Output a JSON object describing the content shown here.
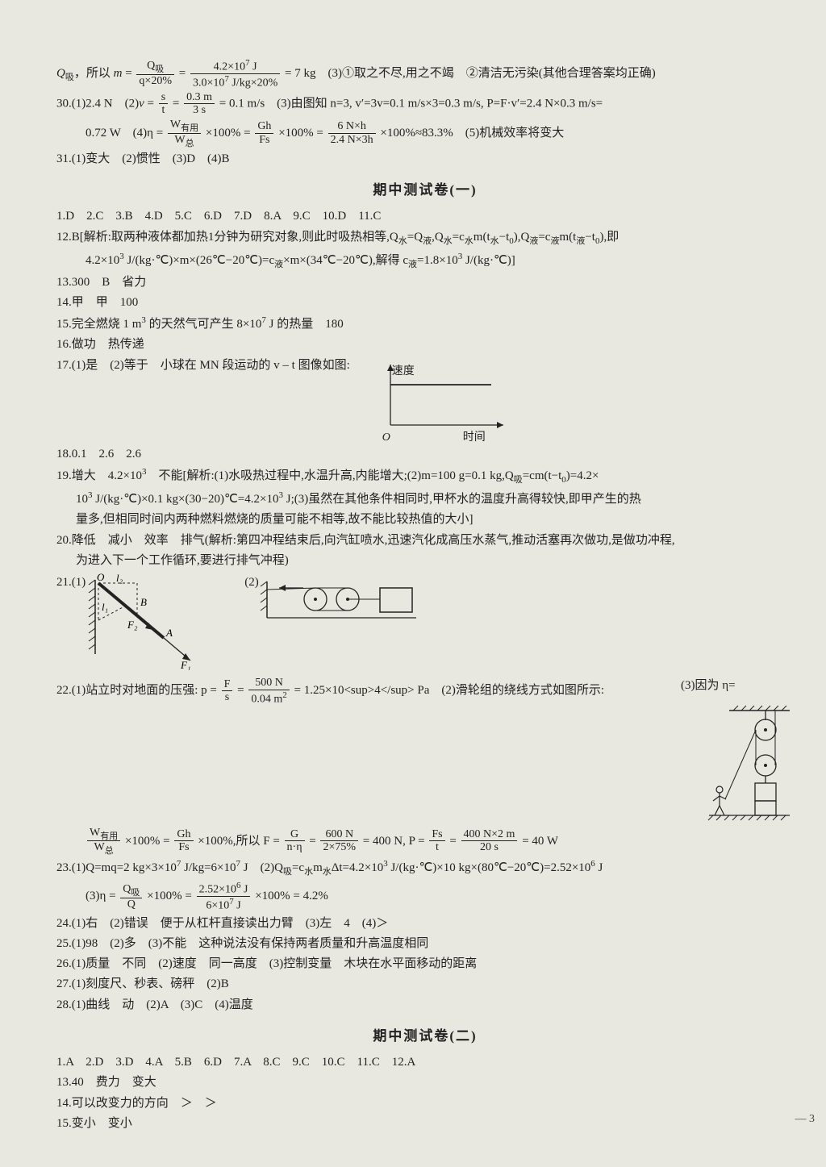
{
  "pre": {
    "l1a": "Q",
    "l1a_sub": "吸",
    "l1b": "，所以 ",
    "l1_m": "m",
    "l1_eq": " = ",
    "f1_num": "Q<sub>吸</sub>",
    "f1_den": "q×20%",
    "f2_num": "4.2×10<sup>7</sup> J",
    "f2_den": "3.0×10<sup>7</sup> J/kg×20%",
    "l1c": " = 7 kg　(3)①取之不尽,用之不竭　②清洁无污染(其他合理答案均正确)",
    "q30a": "30.(1)2.4 N　(2)",
    "q30b": "v",
    "f3_num": "s",
    "f3_den": "t",
    "f4_num": "0.3 m",
    "f4_den": "3 s",
    "q30c": " = 0.1 m/s　(3)由图知 n=3, v′=3v=0.1 m/s×3=0.3 m/s, P=F·v′=2.4 N×0.3 m/s=",
    "q30d": "0.72 W　(4)η = ",
    "f5_num": "W<sub>有用</sub>",
    "f5_den": "W<sub>总</sub>",
    "q30e": "×100% = ",
    "f6_num": "Gh",
    "f6_den": "Fs",
    "f7_num": "6 N×h",
    "f7_den": "2.4 N×3h",
    "q30f": "×100%≈83.3%　(5)机械效率将变大",
    "q31": "31.(1)变大　(2)惯性　(3)D　(4)B"
  },
  "sec1_title": "期中测试卷(一)",
  "s1": {
    "mc": "1.D　2.C　3.B　4.D　5.C　6.D　7.D　8.A　9.C　10.D　11.C",
    "q12a": "12.B[解析:取两种液体都加热1分钟为研究对象,则此时吸热相等,Q<sub>水</sub>=Q<sub>液</sub>,Q<sub>水</sub>=c<sub>水</sub>m(t<sub>水</sub>−t<sub>0</sub>),Q<sub>液</sub>=c<sub>液</sub>m(t<sub>液</sub>−t<sub>0</sub>),即",
    "q12b": "4.2×10<sup>3</sup> J/(kg·℃)×m×(26℃−20℃)=c<sub>液</sub>×m×(34℃−20℃),解得 c<sub>液</sub>=1.8×10<sup>3</sup> J/(kg·℃)]",
    "q13": "13.300　B　省力",
    "q14": "14.甲　甲　100",
    "q15": "15.完全燃烧 1 m<sup>3</sup> 的天然气可产生 8×10<sup>7</sup> J 的热量　180",
    "q16": "16.做功　热传递",
    "q17": "17.(1)是　(2)等于　小球在 MN 段运动的 v – t 图像如图:",
    "vt_y": "速度",
    "vt_x": "时间",
    "vt_o": "O",
    "q18": "18.0.1　2.6　2.6",
    "q19a": "19.增大　4.2×10<sup>3</sup>　不能[解析:(1)水吸热过程中,水温升高,内能增大;(2)m=100 g=0.1 kg,Q<sub>吸</sub>=cm(t−t<sub>0</sub>)=4.2×",
    "q19b": "10<sup>3</sup> J/(kg·℃)×0.1 kg×(30−20)℃=4.2×10<sup>3</sup> J;(3)虽然在其他条件相同时,甲杯水的温度升高得较快,即甲产生的热",
    "q19c": "量多,但相同时间内两种燃料燃烧的质量可能不相等,故不能比较热值的大小]",
    "q20a": "20.降低　减小　效率　排气(解析:第四冲程结束后,向汽缸喷水,迅速汽化成高压水蒸气,推动活塞再次做功,是做功冲程,",
    "q20b": "为进入下一个工作循环,要进行排气冲程)",
    "q21label": "21.(1)",
    "q21label2": "(2)",
    "fig21_O": "O",
    "fig21_l2": "l₂",
    "fig21_l1": "l₁",
    "fig21_B": "B",
    "fig21_A": "A",
    "fig21_F2": "F₂",
    "fig21_F1": "F₁",
    "q22a": "22.(1)站立时对地面的压强: p = ",
    "f22a_num": "F",
    "f22a_den": "s",
    "f22b_num": "500 N",
    "f22b_den": "0.04 m<sup>2</sup>",
    "q22b": " = 1.25×10<sup>4</sup> Pa　(2)滑轮组的绕线方式如图所示:",
    "q22c": "(3)因为 η=",
    "q22d1": "×100% = ",
    "f22c_num": "W<sub>有用</sub>",
    "f22c_den": "W<sub>总</sub>",
    "f22d_num": "Gh",
    "f22d_den": "Fs",
    "q22d2": "×100%,所以 F = ",
    "f22e_num": "G",
    "f22e_den": "n·η",
    "f22f_num": "600 N",
    "f22f_den": "2×75%",
    "q22d3": " = 400 N, P = ",
    "f22g_num": "Fs",
    "f22g_den": "t",
    "f22h_num": "400 N×2 m",
    "f22h_den": "20 s",
    "q22d4": " = 40 W",
    "q23a": "23.(1)Q=mq=2 kg×3×10<sup>7</sup> J/kg=6×10<sup>7</sup> J　(2)Q<sub>吸</sub>=c<sub>水</sub>m<sub>水</sub>Δt=4.2×10<sup>3</sup> J/(kg·℃)×10 kg×(80℃−20℃)=2.52×10<sup>6</sup> J",
    "q23b1": "(3)η = ",
    "f23a_num": "Q<sub>吸</sub>",
    "f23a_den": "Q",
    "f23b_num": "2.52×10<sup>6</sup> J",
    "f23b_den": "6×10<sup>7</sup> J",
    "q23b2": "×100% = 4.2%",
    "q24": "24.(1)右　(2)错误　便于从杠杆直接读出力臂　(3)左　4　(4)＞",
    "q25": "25.(1)98　(2)多　(3)不能　这种说法没有保持两者质量和升高温度相同",
    "q26": "26.(1)质量　不同　(2)速度　同一高度　(3)控制变量　木块在水平面移动的距离",
    "q27": "27.(1)刻度尺、秒表、磅秤　(2)B",
    "q28": "28.(1)曲线　动　(2)A　(3)C　(4)温度"
  },
  "sec2_title": "期中测试卷(二)",
  "s2": {
    "mc": "1.A　2.D　3.D　4.A　5.B　6.D　7.A　8.C　9.C　10.C　11.C　12.A",
    "q13": "13.40　费力　变大",
    "q14": "14.可以改变力的方向　＞　＞",
    "q15": "15.变小　变小"
  },
  "pagefoot": "— 3",
  "colors": {
    "bg": "#e8e8e0",
    "text": "#222222",
    "rule": "#222222"
  }
}
